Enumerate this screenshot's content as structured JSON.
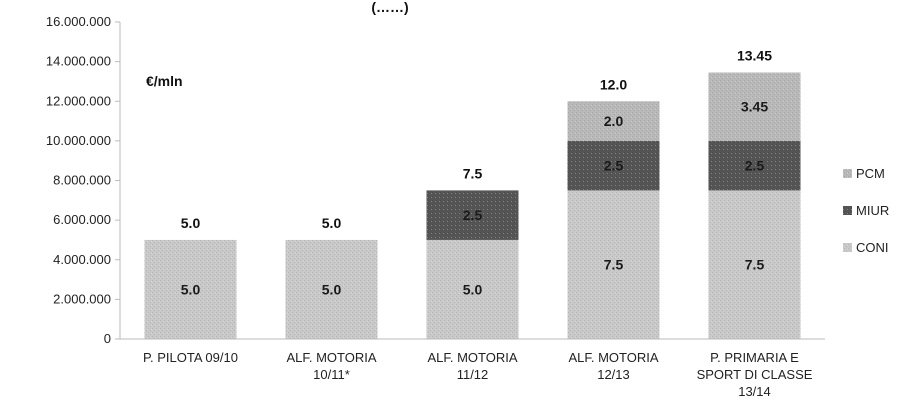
{
  "chart_data": {
    "type": "bar",
    "stacked": true,
    "title_fragment": "(……)",
    "unit_label": "€/mln",
    "categories": [
      [
        "P. PILOTA 09/10"
      ],
      [
        "ALF. MOTORIA",
        "10/11*"
      ],
      [
        "ALF. MOTORIA",
        "11/12"
      ],
      [
        "ALF. MOTORIA",
        "12/13"
      ],
      [
        "P. PRIMARIA E",
        "SPORT DI CLASSE",
        "13/14"
      ]
    ],
    "series": [
      {
        "name": "CONI",
        "color": "#c9c9c9",
        "values": [
          5.0,
          5.0,
          5.0,
          7.5,
          7.5
        ],
        "labels": [
          "5.0",
          "5.0",
          "5.0",
          "7.5",
          "7.5"
        ]
      },
      {
        "name": "MIUR",
        "color": "#555555",
        "values": [
          0,
          0,
          2.5,
          2.5,
          2.5
        ],
        "labels": [
          "",
          "",
          "2.5",
          "2.5",
          "2.5"
        ]
      },
      {
        "name": "PCM",
        "color": "#b9b9b9",
        "values": [
          0,
          0,
          0,
          2.0,
          3.45
        ],
        "labels": [
          "",
          "",
          "",
          "2.0",
          "3.45"
        ]
      }
    ],
    "totals": [
      "5.0",
      "5.0",
      "7.5",
      "12.0",
      "13.45"
    ],
    "legend_order": [
      "PCM",
      "MIUR",
      "CONI"
    ],
    "legend_placement": "right",
    "ylim": [
      0,
      16000000
    ],
    "yticks": [
      0,
      2000000,
      4000000,
      6000000,
      8000000,
      10000000,
      12000000,
      14000000,
      16000000
    ],
    "ytick_labels": [
      "0",
      "2.000.000",
      "4.000.000",
      "6.000.000",
      "8.000.000",
      "10.000.000",
      "12.000.000",
      "14.000.000",
      "16.000.000"
    ],
    "scale_per_unit": 1000000,
    "grid": false
  }
}
